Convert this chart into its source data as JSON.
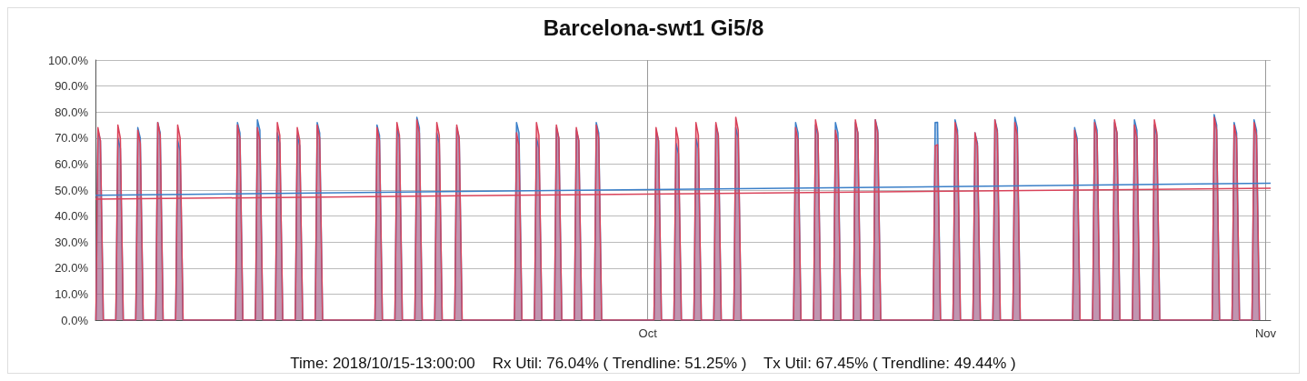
{
  "chart_data": {
    "type": "area",
    "title": "Barcelona-swt1 Gi5/8",
    "annotations": [
      "Time: 2018/10/15-13:00:00    Rx Util: 76.04% ( Trendline: 51.25% )    Tx Util: 67.45% ( Trendline: 49.44% )"
    ],
    "xlim": [
      "2018-09-03T07:00",
      "2018-11-01T06:00"
    ],
    "xticks": [
      {
        "value": "2018-10-01",
        "label": "Oct"
      },
      {
        "value": "2018-11-01",
        "label": "Nov"
      }
    ],
    "ylim": [
      0,
      100
    ],
    "yticks": [
      {
        "value": 0,
        "label": "0.0%"
      },
      {
        "value": 10,
        "label": "10.0%"
      },
      {
        "value": 20,
        "label": "20.0%"
      },
      {
        "value": 30,
        "label": "30.0%"
      },
      {
        "value": 40,
        "label": "40.0%"
      },
      {
        "value": 50,
        "label": "50.0%"
      },
      {
        "value": 60,
        "label": "60.0%"
      },
      {
        "value": 70,
        "label": "70.0%"
      },
      {
        "value": 80,
        "label": "80.0%"
      },
      {
        "value": 90,
        "label": "90.0%"
      },
      {
        "value": 100,
        "label": "100.0%"
      }
    ],
    "grid": true,
    "marker": "none",
    "x": [
      "2018-09-03T07:30",
      "2018-09-03T08:00",
      "2018-09-03T10:00",
      "2018-09-03T13:00",
      "2018-09-03T16:00",
      "2018-09-03T16:30",
      "2018-09-04T07:30",
      "2018-09-04T08:00",
      "2018-09-04T10:00",
      "2018-09-04T13:00",
      "2018-09-04T16:00",
      "2018-09-04T16:30",
      "2018-09-05T07:30",
      "2018-09-05T08:00",
      "2018-09-05T10:00",
      "2018-09-05T13:00",
      "2018-09-05T16:00",
      "2018-09-05T16:30",
      "2018-09-06T07:30",
      "2018-09-06T08:00",
      "2018-09-06T10:00",
      "2018-09-06T13:00",
      "2018-09-06T16:00",
      "2018-09-06T16:30",
      "2018-09-07T07:30",
      "2018-09-07T08:00",
      "2018-09-07T10:00",
      "2018-09-07T13:00",
      "2018-09-07T16:00",
      "2018-09-07T16:30",
      "2018-09-10T07:30",
      "2018-09-10T08:00",
      "2018-09-10T10:00",
      "2018-09-10T13:00",
      "2018-09-10T16:00",
      "2018-09-10T16:30",
      "2018-09-11T07:30",
      "2018-09-11T08:00",
      "2018-09-11T10:00",
      "2018-09-11T13:00",
      "2018-09-11T16:00",
      "2018-09-11T16:30",
      "2018-09-12T07:30",
      "2018-09-12T08:00",
      "2018-09-12T10:00",
      "2018-09-12T13:00",
      "2018-09-12T16:00",
      "2018-09-12T16:30",
      "2018-09-13T07:30",
      "2018-09-13T08:00",
      "2018-09-13T10:00",
      "2018-09-13T13:00",
      "2018-09-13T16:00",
      "2018-09-13T16:30",
      "2018-09-14T07:30",
      "2018-09-14T08:00",
      "2018-09-14T10:00",
      "2018-09-14T13:00",
      "2018-09-14T16:00",
      "2018-09-14T16:30",
      "2018-09-17T07:30",
      "2018-09-17T08:00",
      "2018-09-17T10:00",
      "2018-09-17T13:00",
      "2018-09-17T16:00",
      "2018-09-17T16:30",
      "2018-09-18T07:30",
      "2018-09-18T08:00",
      "2018-09-18T10:00",
      "2018-09-18T13:00",
      "2018-09-18T16:00",
      "2018-09-18T16:30",
      "2018-09-19T07:30",
      "2018-09-19T08:00",
      "2018-09-19T10:00",
      "2018-09-19T13:00",
      "2018-09-19T16:00",
      "2018-09-19T16:30",
      "2018-09-20T07:30",
      "2018-09-20T08:00",
      "2018-09-20T10:00",
      "2018-09-20T13:00",
      "2018-09-20T16:00",
      "2018-09-20T16:30",
      "2018-09-21T07:30",
      "2018-09-21T08:00",
      "2018-09-21T10:00",
      "2018-09-21T13:00",
      "2018-09-21T16:00",
      "2018-09-21T16:30",
      "2018-09-24T07:30",
      "2018-09-24T08:00",
      "2018-09-24T10:00",
      "2018-09-24T13:00",
      "2018-09-24T16:00",
      "2018-09-24T16:30",
      "2018-09-25T07:30",
      "2018-09-25T08:00",
      "2018-09-25T10:00",
      "2018-09-25T13:00",
      "2018-09-25T16:00",
      "2018-09-25T16:30",
      "2018-09-26T07:30",
      "2018-09-26T08:00",
      "2018-09-26T10:00",
      "2018-09-26T13:00",
      "2018-09-26T16:00",
      "2018-09-26T16:30",
      "2018-09-27T07:30",
      "2018-09-27T08:00",
      "2018-09-27T10:00",
      "2018-09-27T13:00",
      "2018-09-27T16:00",
      "2018-09-27T16:30",
      "2018-09-28T07:30",
      "2018-09-28T08:00",
      "2018-09-28T10:00",
      "2018-09-28T13:00",
      "2018-09-28T16:00",
      "2018-09-28T16:30",
      "2018-10-01T07:30",
      "2018-10-01T08:00",
      "2018-10-01T10:00",
      "2018-10-01T13:00",
      "2018-10-01T16:00",
      "2018-10-01T16:30",
      "2018-10-02T07:30",
      "2018-10-02T08:00",
      "2018-10-02T10:00",
      "2018-10-02T13:00",
      "2018-10-02T16:00",
      "2018-10-02T16:30",
      "2018-10-03T07:30",
      "2018-10-03T08:00",
      "2018-10-03T10:00",
      "2018-10-03T13:00",
      "2018-10-03T16:00",
      "2018-10-03T16:30",
      "2018-10-04T07:30",
      "2018-10-04T08:00",
      "2018-10-04T10:00",
      "2018-10-04T13:00",
      "2018-10-04T16:00",
      "2018-10-04T16:30",
      "2018-10-05T07:30",
      "2018-10-05T08:00",
      "2018-10-05T10:00",
      "2018-10-05T13:00",
      "2018-10-05T16:00",
      "2018-10-05T16:30",
      "2018-10-08T07:30",
      "2018-10-08T08:00",
      "2018-10-08T10:00",
      "2018-10-08T13:00",
      "2018-10-08T16:00",
      "2018-10-08T16:30",
      "2018-10-09T07:30",
      "2018-10-09T08:00",
      "2018-10-09T10:00",
      "2018-10-09T13:00",
      "2018-10-09T16:00",
      "2018-10-09T16:30",
      "2018-10-10T07:30",
      "2018-10-10T08:00",
      "2018-10-10T10:00",
      "2018-10-10T13:00",
      "2018-10-10T16:00",
      "2018-10-10T16:30",
      "2018-10-11T07:30",
      "2018-10-11T08:00",
      "2018-10-11T10:00",
      "2018-10-11T13:00",
      "2018-10-11T16:00",
      "2018-10-11T16:30",
      "2018-10-12T07:30",
      "2018-10-12T08:00",
      "2018-10-12T10:00",
      "2018-10-12T13:00",
      "2018-10-12T16:00",
      "2018-10-12T16:30",
      "2018-10-15T07:30",
      "2018-10-15T08:00",
      "2018-10-15T10:00",
      "2018-10-15T13:00",
      "2018-10-15T16:00",
      "2018-10-15T16:30",
      "2018-10-16T07:30",
      "2018-10-16T08:00",
      "2018-10-16T10:00",
      "2018-10-16T13:00",
      "2018-10-16T16:00",
      "2018-10-16T16:30",
      "2018-10-17T07:30",
      "2018-10-17T08:00",
      "2018-10-17T10:00",
      "2018-10-17T13:00",
      "2018-10-17T16:00",
      "2018-10-17T16:30",
      "2018-10-18T07:30",
      "2018-10-18T08:00",
      "2018-10-18T10:00",
      "2018-10-18T13:00",
      "2018-10-18T16:00",
      "2018-10-18T16:30",
      "2018-10-19T07:30",
      "2018-10-19T08:00",
      "2018-10-19T10:00",
      "2018-10-19T13:00",
      "2018-10-19T16:00",
      "2018-10-19T16:30",
      "2018-10-22T07:30",
      "2018-10-22T08:00",
      "2018-10-22T10:00",
      "2018-10-22T13:00",
      "2018-10-22T16:00",
      "2018-10-22T16:30",
      "2018-10-23T07:30",
      "2018-10-23T08:00",
      "2018-10-23T10:00",
      "2018-10-23T13:00",
      "2018-10-23T16:00",
      "2018-10-23T16:30",
      "2018-10-24T07:30",
      "2018-10-24T08:00",
      "2018-10-24T10:00",
      "2018-10-24T13:00",
      "2018-10-24T16:00",
      "2018-10-24T16:30",
      "2018-10-25T07:30",
      "2018-10-25T08:00",
      "2018-10-25T10:00",
      "2018-10-25T13:00",
      "2018-10-25T16:00",
      "2018-10-25T16:30",
      "2018-10-26T07:30",
      "2018-10-26T08:00",
      "2018-10-26T10:00",
      "2018-10-26T13:00",
      "2018-10-26T16:00",
      "2018-10-26T16:30",
      "2018-10-29T07:30",
      "2018-10-29T08:00",
      "2018-10-29T10:00",
      "2018-10-29T13:00",
      "2018-10-29T16:00",
      "2018-10-29T16:30",
      "2018-10-30T07:30",
      "2018-10-30T08:00",
      "2018-10-30T10:00",
      "2018-10-30T13:00",
      "2018-10-30T16:00",
      "2018-10-30T16:30",
      "2018-10-31T07:30",
      "2018-10-31T08:00",
      "2018-10-31T10:00",
      "2018-10-31T13:00",
      "2018-10-31T16:00",
      "2018-10-31T16:30"
    ],
    "series": [
      {
        "color": "#3a7fc8",
        "values": [
          0,
          11,
          73,
          69,
          11,
          0,
          0,
          11,
          70,
          66,
          11,
          0,
          0,
          12,
          74,
          70,
          11,
          0,
          0,
          11,
          76,
          72,
          12,
          0,
          0,
          11,
          69,
          65,
          11,
          0,
          0,
          11,
          76,
          72,
          11,
          0,
          0,
          10,
          77,
          73,
          11,
          0,
          0,
          11,
          72,
          68,
          11,
          0,
          0,
          11,
          71,
          67,
          11,
          0,
          0,
          11,
          76,
          72,
          11,
          0,
          0,
          12,
          75,
          71,
          11,
          0,
          0,
          11,
          74,
          70,
          13,
          0,
          0,
          11,
          78,
          74,
          11,
          0,
          0,
          11,
          72,
          68,
          11,
          0,
          0,
          11,
          74,
          70,
          11,
          0,
          0,
          11,
          76,
          72,
          11,
          0,
          0,
          12,
          70,
          66,
          11,
          0,
          0,
          11,
          74,
          70,
          11,
          0,
          0,
          11,
          73,
          69,
          11,
          0,
          0,
          11,
          76,
          72,
          11,
          0,
          0,
          11,
          73,
          69,
          11,
          0,
          0,
          12,
          68,
          64,
          11,
          0,
          0,
          11,
          70,
          66,
          11,
          0,
          0,
          11,
          75,
          71,
          11,
          0,
          0,
          11,
          74,
          70,
          11,
          0,
          0,
          11,
          76,
          72,
          11,
          0,
          0,
          11,
          75,
          71,
          11,
          0,
          0,
          11,
          76,
          72,
          11,
          0,
          0,
          11,
          76,
          72,
          11,
          0,
          0,
          11,
          77,
          73,
          11,
          0,
          0,
          10,
          76,
          76.04,
          11,
          0,
          0,
          11,
          77,
          73,
          11,
          0,
          0,
          11,
          72,
          68,
          11,
          0,
          0,
          11,
          77,
          73,
          11,
          0,
          0,
          11,
          78,
          74,
          11,
          0,
          0,
          11,
          74,
          70,
          11,
          0,
          0,
          11,
          77,
          73,
          11,
          0,
          0,
          11,
          76,
          72,
          11,
          0,
          0,
          11,
          77,
          73,
          11,
          0,
          0,
          11,
          75,
          71,
          11,
          0,
          0,
          11,
          79,
          75,
          11,
          0,
          0,
          11,
          76,
          72,
          11,
          0,
          0,
          11,
          77,
          73,
          11,
          0
        ]
      },
      {
        "color": "#d9435a",
        "values": [
          0,
          12,
          74,
          69,
          11,
          0,
          0,
          12,
          75,
          70,
          11,
          0,
          0,
          12,
          73,
          68,
          11,
          0,
          0,
          12,
          76,
          71,
          11,
          0,
          0,
          12,
          75,
          70,
          11,
          0,
          0,
          12,
          75,
          70,
          11,
          0,
          0,
          12,
          74,
          69,
          11,
          0,
          0,
          12,
          76,
          71,
          11,
          0,
          0,
          12,
          74,
          69,
          11,
          0,
          0,
          12,
          75,
          70,
          11,
          0,
          0,
          12,
          74,
          69,
          11,
          0,
          0,
          12,
          76,
          71,
          11,
          0,
          0,
          12,
          77,
          72,
          11,
          0,
          0,
          12,
          76,
          71,
          11,
          0,
          0,
          12,
          75,
          70,
          11,
          0,
          0,
          12,
          72,
          67,
          11,
          0,
          0,
          12,
          76,
          71,
          11,
          0,
          0,
          12,
          75,
          70,
          11,
          0,
          0,
          12,
          74,
          69,
          11,
          0,
          0,
          12,
          75,
          70,
          11,
          0,
          0,
          12,
          74,
          69,
          11,
          0,
          0,
          12,
          74,
          69,
          11,
          0,
          0,
          12,
          76,
          71,
          11,
          0,
          0,
          12,
          76,
          71,
          11,
          0,
          0,
          12,
          78,
          73,
          11,
          0,
          0,
          12,
          74,
          69,
          11,
          0,
          0,
          12,
          77,
          72,
          11,
          0,
          0,
          12,
          73,
          68,
          11,
          0,
          0,
          12,
          77,
          72,
          11,
          0,
          0,
          12,
          77,
          72,
          11,
          0,
          0,
          12,
          67,
          67.45,
          11,
          0,
          0,
          12,
          76,
          71,
          11,
          0,
          0,
          12,
          72,
          67,
          11,
          0,
          0,
          12,
          77,
          72,
          11,
          0,
          0,
          12,
          76,
          71,
          11,
          0,
          0,
          12,
          73,
          68,
          11,
          0,
          0,
          12,
          76,
          71,
          11,
          0,
          0,
          12,
          77,
          72,
          11,
          0,
          0,
          12,
          75,
          70,
          11,
          0,
          0,
          12,
          77,
          72,
          11,
          0,
          0,
          12,
          78,
          73,
          11,
          0,
          0,
          12,
          75,
          70,
          11,
          0,
          0,
          12,
          76,
          71,
          11,
          0
        ]
      },
      {
        "type": "line",
        "color": "#3a7fc8",
        "x": [
          "2018-09-03T07:00",
          "2018-11-01T06:00"
        ],
        "values": [
          48,
          52.6
        ]
      },
      {
        "type": "line",
        "color": "#d9435a",
        "x": [
          "2018-09-03T07:00",
          "2018-11-01T06:00"
        ],
        "values": [
          46.5,
          50.7
        ]
      }
    ]
  }
}
